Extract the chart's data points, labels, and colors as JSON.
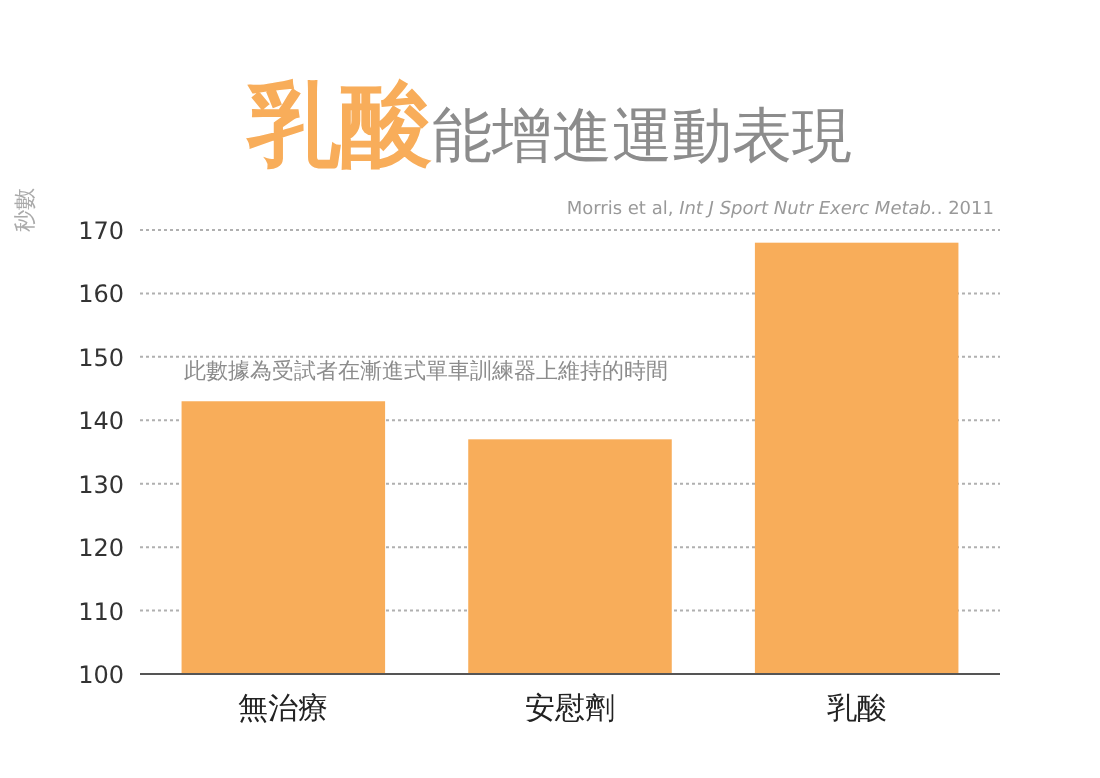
{
  "chart_data": {
    "type": "bar",
    "title": "**乳酸**能增進運動表現",
    "ylabel": "秒數",
    "categories": [
      "無治療",
      "安慰劑",
      "乳酸"
    ],
    "values": [
      143,
      137,
      168
    ],
    "color": "#f8ad5a",
    "ylim": [
      100,
      170
    ],
    "yticks": [
      100,
      110,
      120,
      130,
      140,
      150,
      160,
      170
    ],
    "grid": "y",
    "annotations": [
      "Morris et al, *Int J Sport Nutr Exerc Metab.*. 2011",
      "此數據為受試者在漸進式單車訓練器上維持的時間"
    ]
  }
}
